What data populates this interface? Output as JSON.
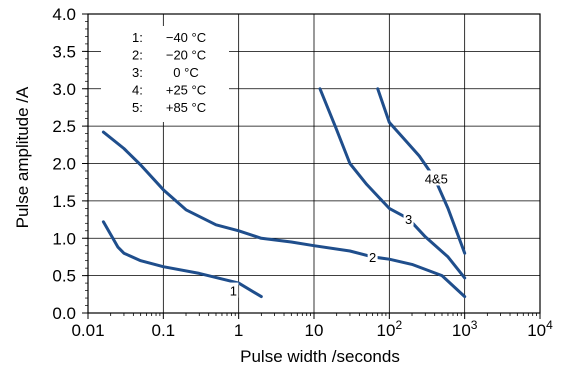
{
  "chart_data": {
    "type": "line",
    "xlabel": "Pulse width /seconds",
    "ylabel": "Pulse amplitude /A",
    "xscale": "log",
    "xlim": [
      0.01,
      10000
    ],
    "ylim": [
      0,
      4.0
    ],
    "grid": true,
    "legend_position": "top-left",
    "x_ticks": [
      {
        "value": 0.01,
        "label": "0.01"
      },
      {
        "value": 0.1,
        "label": "0.1"
      },
      {
        "value": 1,
        "label": "1"
      },
      {
        "value": 10,
        "label": "10"
      },
      {
        "value": 100,
        "label": "10",
        "sup": "2"
      },
      {
        "value": 1000,
        "label": "10",
        "sup": "3"
      },
      {
        "value": 10000,
        "label": "10",
        "sup": "4"
      }
    ],
    "y_ticks": [
      {
        "value": 0,
        "label": "0.0"
      },
      {
        "value": 0.5,
        "label": "0.5"
      },
      {
        "value": 1.0,
        "label": "1.0"
      },
      {
        "value": 1.5,
        "label": "1.5"
      },
      {
        "value": 2.0,
        "label": "2.0"
      },
      {
        "value": 2.5,
        "label": "2.5"
      },
      {
        "value": 3.0,
        "label": "3.0"
      },
      {
        "value": 3.5,
        "label": "3.5"
      },
      {
        "value": 4.0,
        "label": "4.0"
      }
    ],
    "legend": [
      {
        "num": "1:",
        "temp": "−40 °C"
      },
      {
        "num": "2:",
        "temp": "−20 °C"
      },
      {
        "num": "3:",
        "temp": "0 °C"
      },
      {
        "num": "4:",
        "temp": "+25 °C"
      },
      {
        "num": "5:",
        "temp": "+85 °C"
      }
    ],
    "line_color": "#1f4e8c",
    "series": [
      {
        "label": "1",
        "label_at": [
          0.85,
          0.3
        ],
        "points": [
          [
            0.016,
            1.22
          ],
          [
            0.02,
            1.05
          ],
          [
            0.025,
            0.88
          ],
          [
            0.03,
            0.8
          ],
          [
            0.05,
            0.7
          ],
          [
            0.1,
            0.62
          ],
          [
            0.3,
            0.53
          ],
          [
            1,
            0.4
          ],
          [
            2,
            0.22
          ]
        ]
      },
      {
        "label": "2",
        "label_at": [
          60,
          0.75
        ],
        "points": [
          [
            0.016,
            2.42
          ],
          [
            0.03,
            2.2
          ],
          [
            0.05,
            1.98
          ],
          [
            0.1,
            1.65
          ],
          [
            0.2,
            1.38
          ],
          [
            0.5,
            1.18
          ],
          [
            1,
            1.1
          ],
          [
            2,
            1.0
          ],
          [
            5,
            0.95
          ],
          [
            10,
            0.9
          ],
          [
            30,
            0.83
          ],
          [
            60,
            0.75
          ],
          [
            100,
            0.72
          ],
          [
            200,
            0.65
          ],
          [
            500,
            0.5
          ],
          [
            1000,
            0.22
          ]
        ]
      },
      {
        "label": "3",
        "label_at": [
          180,
          1.26
        ],
        "points": [
          [
            12,
            3.0
          ],
          [
            20,
            2.45
          ],
          [
            30,
            2.0
          ],
          [
            50,
            1.72
          ],
          [
            100,
            1.4
          ],
          [
            180,
            1.26
          ],
          [
            300,
            1.02
          ],
          [
            600,
            0.75
          ],
          [
            1000,
            0.47
          ]
        ]
      },
      {
        "label": "4&5",
        "label_at": [
          420,
          1.8
        ],
        "points": [
          [
            70,
            3.0
          ],
          [
            100,
            2.55
          ],
          [
            150,
            2.35
          ],
          [
            250,
            2.1
          ],
          [
            400,
            1.8
          ],
          [
            600,
            1.4
          ],
          [
            1000,
            0.8
          ]
        ]
      }
    ]
  }
}
